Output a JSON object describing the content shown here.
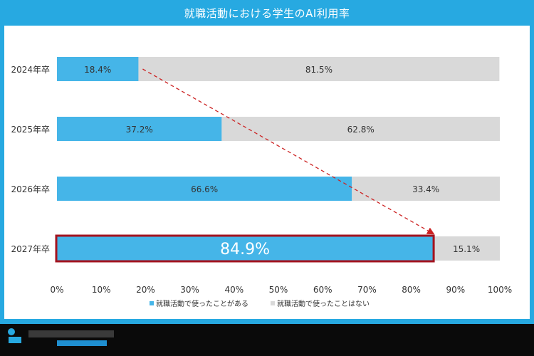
{
  "chart_data": {
    "type": "bar",
    "orientation": "horizontal",
    "stacked": true,
    "title": "就職活動における学生のAI利用率",
    "categories": [
      "2024年卒",
      "2025年卒",
      "2026年卒",
      "2027年卒"
    ],
    "series": [
      {
        "name": "就職活動で使ったことがある",
        "values": [
          18.4,
          37.2,
          66.6,
          84.9
        ],
        "labels": [
          "18.4%",
          "37.2%",
          "66.6%",
          "84.9%"
        ],
        "color": "#45b5e8"
      },
      {
        "name": "就職活動で使ったことはない",
        "values": [
          81.5,
          62.8,
          33.4,
          15.1
        ],
        "labels": [
          "81.5%",
          "62.8%",
          "33.4%",
          "15.1%"
        ],
        "color": "#d9d9d9"
      }
    ],
    "xlim": [
      0,
      100
    ],
    "xticks": [
      "0%",
      "10%",
      "20%",
      "30%",
      "40%",
      "50%",
      "60%",
      "70%",
      "80%",
      "90%",
      "100%"
    ],
    "highlight": {
      "category": "2027年卒",
      "border_color": "#a3131f"
    },
    "arrow_color": "#cc2222",
    "legend_position": "bottom",
    "grid": false
  }
}
